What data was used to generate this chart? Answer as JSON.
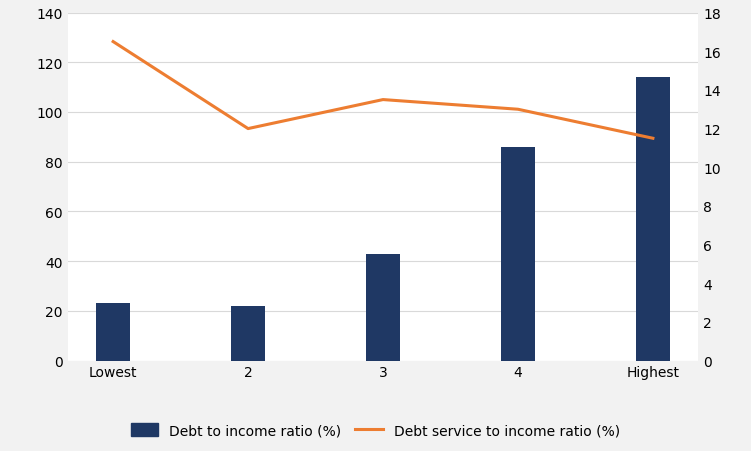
{
  "categories": [
    "Lowest",
    "2",
    "3",
    "4",
    "Highest"
  ],
  "bar_values": [
    23,
    22,
    43,
    86,
    114
  ],
  "line_values": [
    16.5,
    12.0,
    13.5,
    13.0,
    11.5
  ],
  "bar_color": "#1f3864",
  "line_color": "#ed7d31",
  "bar_label": "Debt to income ratio (%)",
  "line_label": "Debt service to income ratio (%)",
  "ylim_left": [
    0,
    140
  ],
  "ylim_right": [
    0,
    18
  ],
  "yticks_left": [
    0,
    20,
    40,
    60,
    80,
    100,
    120,
    140
  ],
  "yticks_right": [
    0,
    2,
    4,
    6,
    8,
    10,
    12,
    14,
    16,
    18
  ],
  "background_color": "#f2f2f2",
  "plot_bg_color": "#ffffff",
  "grid_color": "#d9d9d9",
  "line_width": 2.2,
  "bar_width": 0.25,
  "legend_fontsize": 10,
  "tick_fontsize": 10
}
